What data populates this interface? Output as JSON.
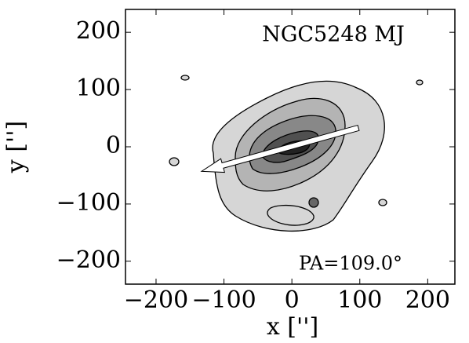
{
  "chart_data": {
    "type": "image",
    "annotations": [
      "NGC5248 MJ",
      "PA=109.0°"
    ],
    "xlabel": "x ['']",
    "ylabel": "y ['']",
    "xlim": [
      -245,
      240
    ],
    "ylim": [
      -240,
      240
    ],
    "xticks": [
      {
        "value": -200,
        "label": "−200"
      },
      {
        "value": -100,
        "label": "−100"
      },
      0,
      100,
      200
    ],
    "yticks": [
      {
        "value": -200,
        "label": "−200"
      },
      {
        "value": -100,
        "label": "−100"
      },
      0,
      100,
      200
    ],
    "arrow": {
      "x": [
        98,
        -133
      ],
      "y": [
        33,
        -43
      ],
      "color": "#ffffff"
    }
  }
}
